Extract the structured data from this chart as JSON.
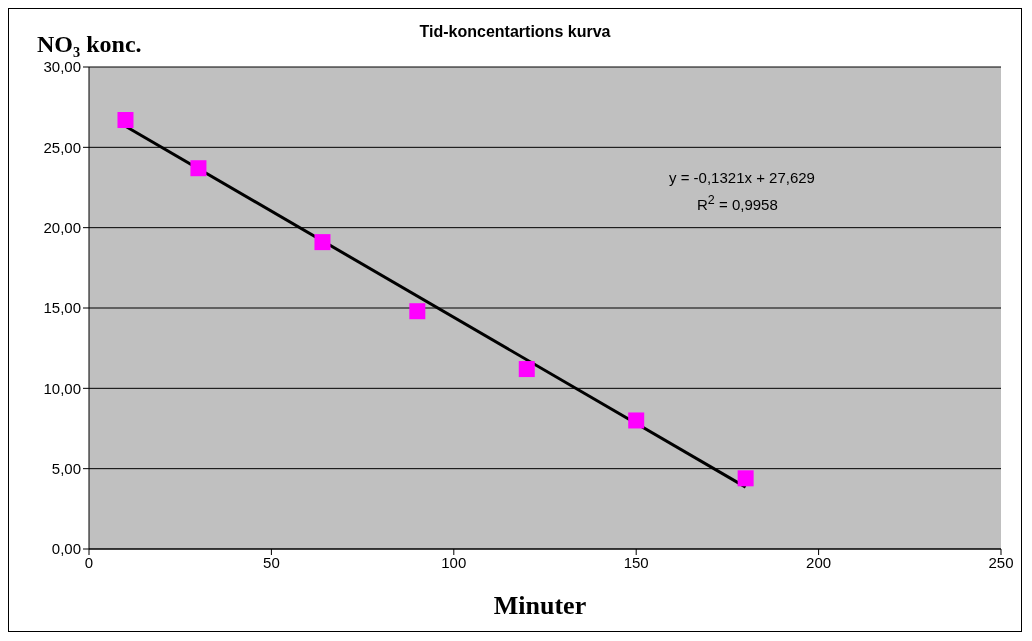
{
  "chart_data": {
    "type": "scatter",
    "title": "Tid-koncentartions kurva",
    "xlabel": "Minuter",
    "ylabel": "NO₃ konc.",
    "series": [
      {
        "color": "#ff00ff",
        "marker": "square",
        "x": [
          10,
          30,
          64,
          90,
          120,
          150,
          180
        ],
        "values": [
          26.7,
          23.7,
          19.1,
          14.8,
          11.2,
          8.0,
          4.4
        ]
      },
      {
        "type": "line",
        "marker": "none",
        "color": "#000000",
        "x": [
          10,
          180
        ],
        "values": [
          26.31,
          3.85
        ]
      }
    ],
    "grid": "y",
    "legend": false,
    "xlim": [
      0,
      250
    ],
    "xticks": [
      0,
      50,
      100,
      150,
      200,
      250
    ],
    "ylim": [
      0,
      30
    ],
    "yticks": [
      {
        "value": 0,
        "label": "0,00"
      },
      {
        "value": 5,
        "label": "5,00"
      },
      {
        "value": 10,
        "label": "10,00"
      },
      {
        "value": 15,
        "label": "15,00"
      },
      {
        "value": 20,
        "label": "20,00"
      },
      {
        "value": 25,
        "label": "25,00"
      },
      {
        "value": 30,
        "label": "30,00"
      }
    ],
    "annotations": [
      "y = -0,1321x + 27,629",
      "R$^{2}$ = 0,9958"
    ]
  }
}
